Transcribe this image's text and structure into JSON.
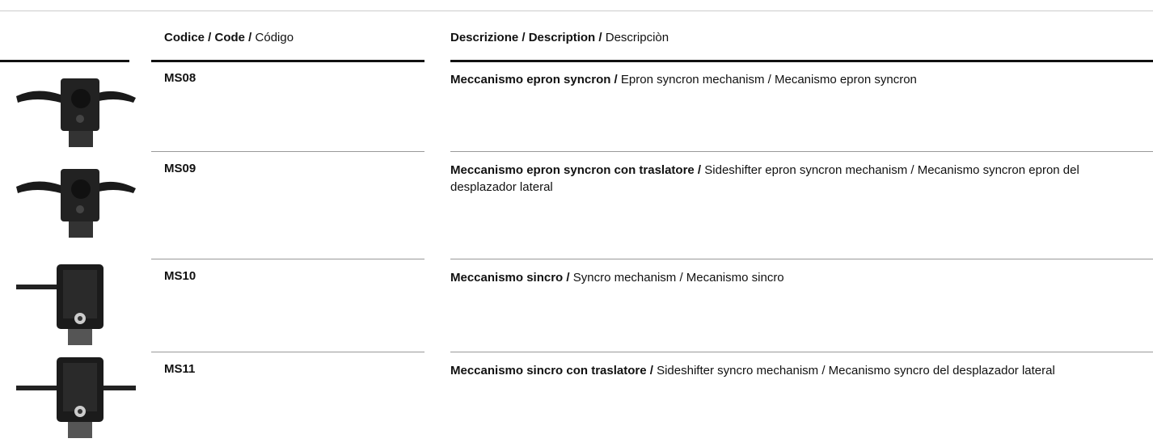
{
  "header": {
    "code_bold": "Codice / Code /",
    "code_normal": "Código",
    "desc_bold": "Descrizione / Description /",
    "desc_normal": "Descripciòn"
  },
  "rows": [
    {
      "code": "MS08",
      "desc_bold": "Meccanismo epron syncron /",
      "desc_normal": "Epron syncron mechanism / Mecanismo epron syncron"
    },
    {
      "code": "MS09",
      "desc_bold": "Meccanismo epron syncron con traslatore /",
      "desc_normal": "Sideshifter epron syncron mechanism / Mecanismo syncron epron del desplazador lateral"
    },
    {
      "code": "MS10",
      "desc_bold": "Meccanismo sincro /",
      "desc_normal": "Syncro mechanism / Mecanismo sincro"
    },
    {
      "code": "MS11",
      "desc_bold": "Meccanismo sincro con traslatore /",
      "desc_normal": "Sideshifter syncro mechanism / Mecanismo syncro del desplazador lateral"
    }
  ]
}
